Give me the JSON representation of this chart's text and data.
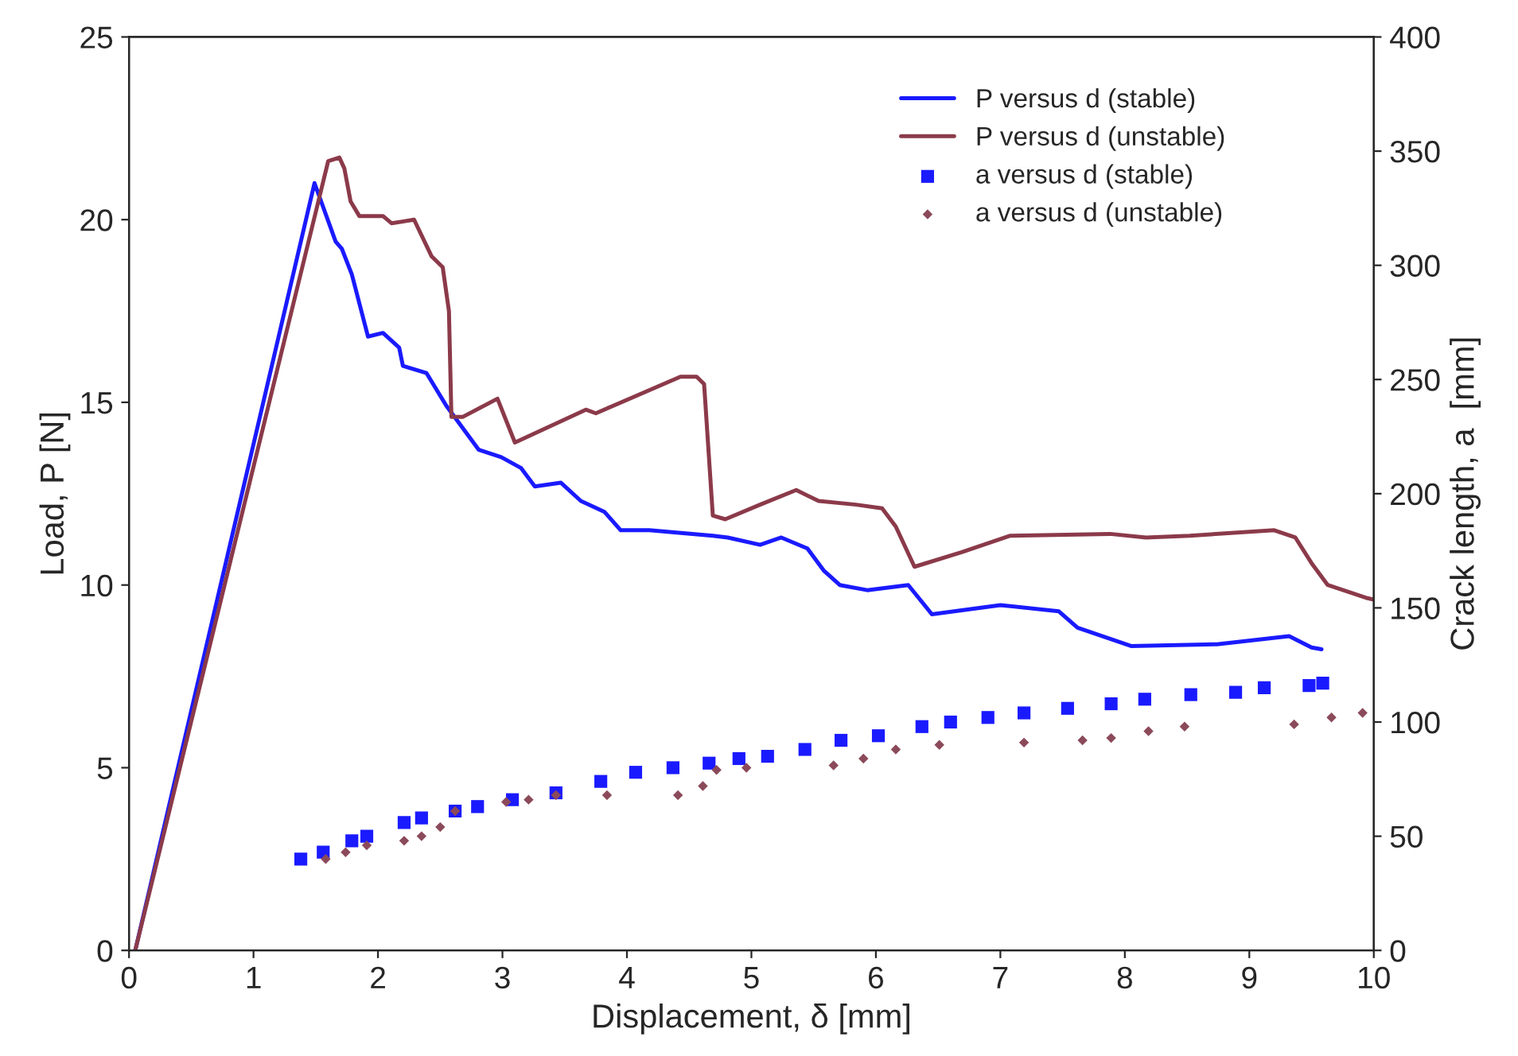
{
  "chart_data": {
    "type": "line",
    "xlabel": "Displacement, δ [mm]",
    "ylabel": "Load, P [N]",
    "y2label": "Crack length, a  [mm]",
    "xlim": [
      0,
      10
    ],
    "xticks": [
      0,
      1,
      2,
      3,
      4,
      5,
      6,
      7,
      8,
      9,
      10
    ],
    "ylim": [
      0,
      25
    ],
    "yticks": [
      0,
      5,
      10,
      15,
      20,
      25
    ],
    "y2lim": [
      0,
      400
    ],
    "y2ticks": [
      0,
      50,
      100,
      150,
      200,
      250,
      300,
      350,
      400
    ],
    "grid": false,
    "legend": "top right",
    "series": [
      {
        "name": "P versus d (stable)",
        "type": "line",
        "color": "#1a1aff",
        "marker": "none",
        "x": [
          0.05,
          1.49,
          1.66,
          1.71,
          1.79,
          1.92,
          2.04,
          2.17,
          2.2,
          2.39,
          2.55,
          2.81,
          2.99,
          3.15,
          3.26,
          3.47,
          3.63,
          3.82,
          3.95,
          4.18,
          4.69,
          4.81,
          5.07,
          5.24,
          5.45,
          5.58,
          5.71,
          5.93,
          6.26,
          6.45,
          7.0,
          7.47,
          7.62,
          8.05,
          8.74,
          9.32,
          9.5,
          9.58
        ],
        "values": [
          0,
          21.0,
          19.4,
          19.2,
          18.5,
          16.8,
          16.9,
          16.5,
          16.0,
          15.8,
          14.9,
          13.7,
          13.5,
          13.2,
          12.7,
          12.8,
          12.3,
          12.0,
          11.5,
          11.5,
          11.35,
          11.3,
          11.1,
          11.3,
          11.0,
          10.4,
          10.0,
          9.86,
          10.0,
          9.2,
          9.45,
          9.28,
          8.83,
          8.33,
          8.38,
          8.6,
          8.29,
          8.24
        ]
      },
      {
        "name": "P versus d (unstable)",
        "type": "line",
        "color": "#8b3a4a",
        "marker": "none",
        "x": [
          0.05,
          1.6,
          1.69,
          1.73,
          1.78,
          1.85,
          2.04,
          2.11,
          2.29,
          2.43,
          2.52,
          2.57,
          2.59,
          2.68,
          2.96,
          3.1,
          3.67,
          3.75,
          4.43,
          4.56,
          4.62,
          4.69,
          4.79,
          5.07,
          5.36,
          5.54,
          5.84,
          6.05,
          6.16,
          6.31,
          6.69,
          7.08,
          7.88,
          8.17,
          8.52,
          9.2,
          9.37,
          9.5,
          9.63,
          9.95,
          10.0
        ],
        "values": [
          0,
          21.6,
          21.7,
          21.4,
          20.5,
          20.1,
          20.1,
          19.9,
          20.0,
          19.0,
          18.7,
          17.5,
          14.6,
          14.6,
          15.1,
          13.9,
          14.8,
          14.7,
          15.7,
          15.7,
          15.5,
          11.9,
          11.8,
          12.2,
          12.6,
          12.3,
          12.2,
          12.1,
          11.6,
          10.5,
          10.9,
          11.35,
          11.4,
          11.3,
          11.35,
          11.5,
          11.3,
          10.6,
          10.0,
          9.64,
          9.6
        ]
      },
      {
        "name": "a versus d (stable)",
        "type": "scatter",
        "axis": "y2",
        "color": "#1a1aff",
        "marker": "square",
        "x": [
          1.38,
          1.56,
          1.79,
          1.91,
          2.21,
          2.35,
          2.62,
          2.8,
          3.08,
          3.43,
          3.79,
          4.07,
          4.37,
          4.66,
          4.9,
          5.13,
          5.43,
          5.72,
          6.02,
          6.37,
          6.6,
          6.9,
          7.19,
          7.54,
          7.89,
          8.16,
          8.53,
          8.89,
          9.12,
          9.48,
          9.59
        ],
        "values": [
          40,
          43,
          48,
          50,
          56,
          58,
          61,
          63,
          66,
          69,
          74,
          78,
          80,
          82,
          84,
          85,
          88,
          92,
          94,
          98,
          100,
          102,
          104,
          106,
          108,
          110,
          112,
          113,
          115,
          116,
          117
        ]
      },
      {
        "name": "a versus d (unstable)",
        "type": "scatter",
        "axis": "y2",
        "color": "#8b4a5a",
        "marker": "diamond",
        "x": [
          1.58,
          1.74,
          1.91,
          2.21,
          2.35,
          2.5,
          2.62,
          3.03,
          3.21,
          3.43,
          3.84,
          4.41,
          4.61,
          4.72,
          4.96,
          5.66,
          5.9,
          6.16,
          6.51,
          7.19,
          7.66,
          7.89,
          8.19,
          8.48,
          9.36,
          9.66,
          9.91
        ],
        "values": [
          40,
          43,
          46,
          48,
          50,
          54,
          61,
          65,
          66,
          68,
          68,
          68,
          72,
          79,
          80,
          81,
          84,
          88,
          90,
          91,
          92,
          93,
          96,
          98,
          99,
          102,
          104
        ]
      }
    ]
  }
}
